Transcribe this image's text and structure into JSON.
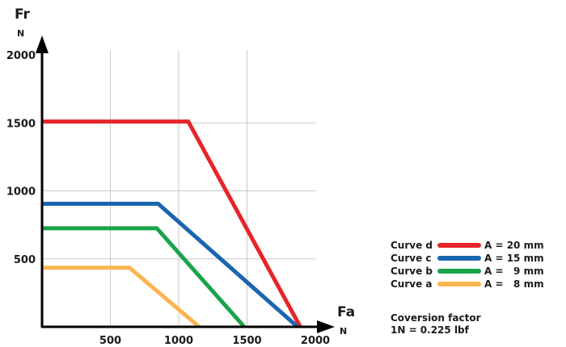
{
  "chart_data": {
    "type": "line",
    "title": "",
    "ylabel": "Fr",
    "ylabel_unit": "N",
    "xlabel": "Fa",
    "xlabel_unit": "N",
    "xlim": [
      0,
      2000
    ],
    "ylim": [
      0,
      2000
    ],
    "x_ticks": [
      500,
      1000,
      1500,
      2000
    ],
    "y_ticks": [
      500,
      1000,
      1500,
      2000
    ],
    "grid": true,
    "legend_position": "bottom-right",
    "series": [
      {
        "name": "Curve d",
        "detail": "A = 20 mm",
        "color": "#e8242b",
        "x": [
          0,
          1070,
          1890
        ],
        "y": [
          1510,
          1510,
          0
        ]
      },
      {
        "name": "Curve c",
        "detail": "A = 15 mm",
        "color": "#1b65b0",
        "x": [
          0,
          850,
          1870
        ],
        "y": [
          905,
          905,
          0
        ]
      },
      {
        "name": "Curve b",
        "detail": "A =   9 mm",
        "color": "#1aa34a",
        "x": [
          0,
          840,
          1480
        ],
        "y": [
          725,
          725,
          0
        ]
      },
      {
        "name": "Curve a",
        "detail": "A =   8 mm",
        "color": "#fbb450",
        "x": [
          0,
          640,
          1150
        ],
        "y": [
          435,
          435,
          0
        ]
      }
    ]
  },
  "note": {
    "line1": "Coversion factor",
    "line2": "1N = 0.225 lbf"
  }
}
